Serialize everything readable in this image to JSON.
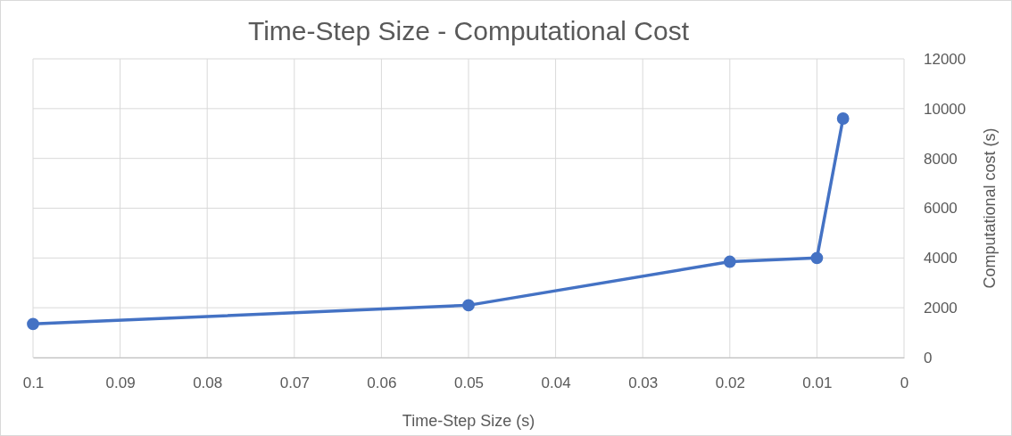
{
  "chart_data": {
    "type": "line",
    "title": "Time-Step Size - Computational Cost",
    "xlabel": "Time-Step Size (s)",
    "ylabel": "Computational cost (s)",
    "x": [
      0.1,
      0.05,
      0.02,
      0.01,
      0.007
    ],
    "series": [
      {
        "color": "#4472c4",
        "values": [
          1350,
          2100,
          3850,
          4000,
          9600
        ]
      }
    ],
    "xlim": [
      0.1,
      0
    ],
    "xticks": [
      0.1,
      0.09,
      0.08,
      0.07,
      0.06,
      0.05,
      0.04,
      0.03,
      0.02,
      0.01,
      0
    ],
    "ylim": [
      0,
      12000
    ],
    "yticks": [
      0,
      2000,
      4000,
      6000,
      8000,
      10000,
      12000
    ],
    "grid": true,
    "marker": "circle",
    "line_style": "solid"
  }
}
